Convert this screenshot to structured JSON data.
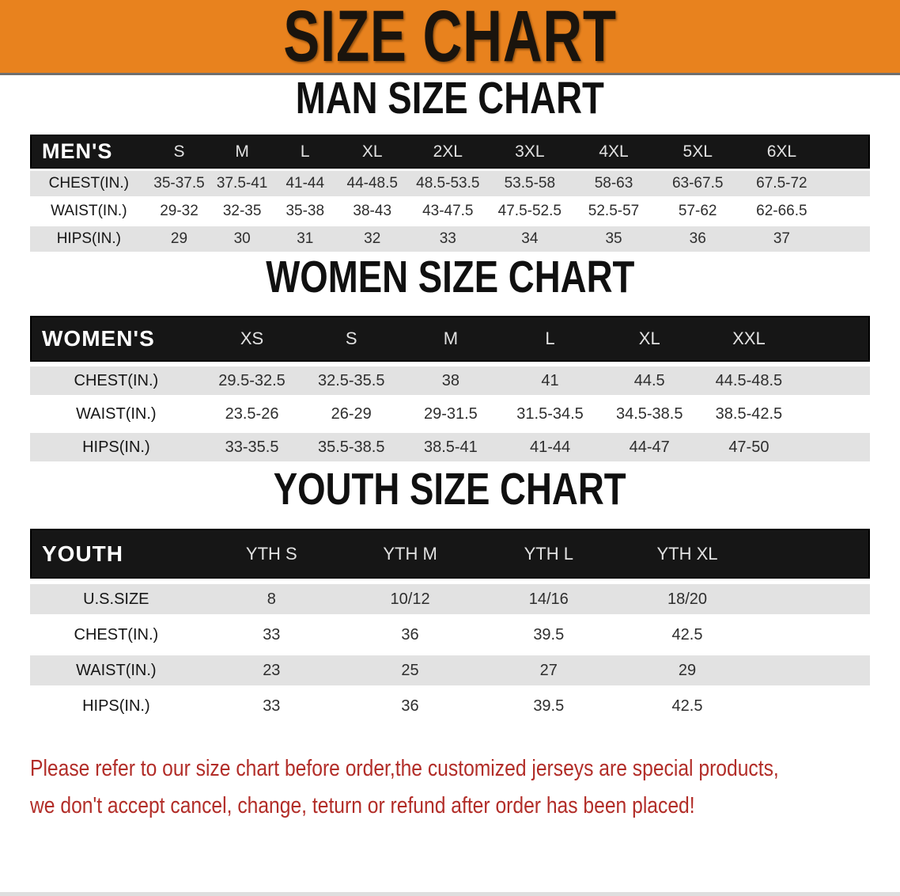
{
  "banner": {
    "title": "SIZE CHART"
  },
  "sections": [
    {
      "heading": "MAN SIZE CHART",
      "table": {
        "corner_label": "MEN'S",
        "columns": [
          "S",
          "M",
          "L",
          "XL",
          "2XL",
          "3XL",
          "4XL",
          "5XL",
          "6XL"
        ],
        "rows": [
          {
            "label": "CHEST(IN.)",
            "values": [
              "35-37.5",
              "37.5-41",
              "41-44",
              "44-48.5",
              "48.5-53.5",
              "53.5-58",
              "58-63",
              "63-67.5",
              "67.5-72"
            ]
          },
          {
            "label": "WAIST(IN.)",
            "values": [
              "29-32",
              "32-35",
              "35-38",
              "38-43",
              "43-47.5",
              "47.5-52.5",
              "52.5-57",
              "57-62",
              "62-66.5"
            ]
          },
          {
            "label": "HIPS(IN.)",
            "values": [
              "29",
              "30",
              "31",
              "32",
              "33",
              "34",
              "35",
              "36",
              "37"
            ]
          }
        ]
      }
    },
    {
      "heading": "WOMEN SIZE CHART",
      "table": {
        "corner_label": "WOMEN'S",
        "columns": [
          "XS",
          "S",
          "M",
          "L",
          "XL",
          "XXL"
        ],
        "rows": [
          {
            "label": "CHEST(IN.)",
            "values": [
              "29.5-32.5",
              "32.5-35.5",
              "38",
              "41",
              "44.5",
              "44.5-48.5"
            ]
          },
          {
            "label": "WAIST(IN.)",
            "values": [
              "23.5-26",
              "26-29",
              "29-31.5",
              "31.5-34.5",
              "34.5-38.5",
              "38.5-42.5"
            ]
          },
          {
            "label": "HIPS(IN.)",
            "values": [
              "33-35.5",
              "35.5-38.5",
              "38.5-41",
              "41-44",
              "44-47",
              "47-50"
            ]
          }
        ]
      }
    },
    {
      "heading": "YOUTH SIZE CHART",
      "table": {
        "corner_label": "YOUTH",
        "columns": [
          "YTH S",
          "YTH M",
          "YTH L",
          "YTH XL"
        ],
        "rows": [
          {
            "label": "U.S.SIZE",
            "values": [
              "8",
              "10/12",
              "14/16",
              "18/20"
            ]
          },
          {
            "label": "CHEST(IN.)",
            "values": [
              "33",
              "36",
              "39.5",
              "42.5"
            ]
          },
          {
            "label": "WAIST(IN.)",
            "values": [
              "23",
              "25",
              "27",
              "29"
            ]
          },
          {
            "label": "HIPS(IN.)",
            "values": [
              "33",
              "36",
              "39.5",
              "42.5"
            ]
          }
        ]
      }
    }
  ],
  "disclaimer": {
    "line1": "Please refer to our size chart before order,the customized jerseys are special products,",
    "line2": "we don't accept cancel, change, teturn or refund after order has been placed!"
  },
  "colors": {
    "banner_orange": "#E8821E",
    "header_black": "#161616",
    "row_gray": "#E2E2E2",
    "row_white": "#FFFFFF",
    "heading_black": "#101010",
    "disclaimer_red": "#B22D28"
  }
}
